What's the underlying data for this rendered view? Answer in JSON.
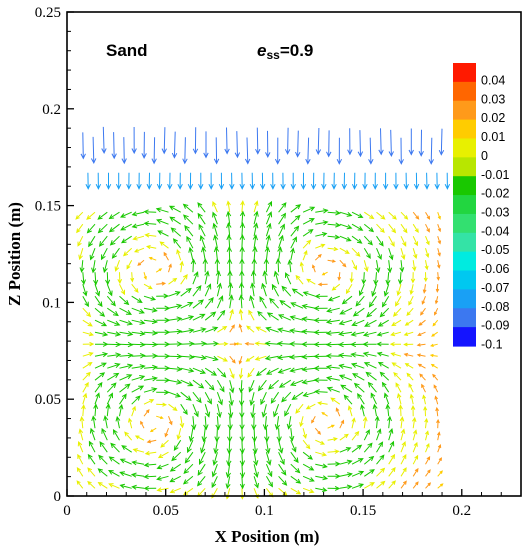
{
  "chart_data": {
    "type": "vector-field",
    "xlabel": "X Position (m)",
    "ylabel": "Z Position (m)",
    "xlim": [
      0,
      0.23
    ],
    "ylim": [
      0,
      0.25
    ],
    "x_ticks": [
      "0",
      "0.05",
      "0.1",
      "0.15",
      "0.2"
    ],
    "x_tick_values": [
      0,
      0.05,
      0.1,
      0.15,
      0.2
    ],
    "y_ticks": [
      "0",
      "0.05",
      "0.1",
      "0.15",
      "0.2",
      "0.25"
    ],
    "y_tick_values": [
      0,
      0.05,
      0.1,
      0.15,
      0.2,
      0.25
    ],
    "grid": false,
    "annotations": {
      "material": "Sand",
      "ratio_prefix": "e",
      "ratio_subscript": "ss",
      "ratio_value": "=0.9"
    },
    "colorbar": {
      "placement": "top-right",
      "levels": [
        "0.04",
        "0.03",
        "0.02",
        "0.01",
        "0",
        "-0.01",
        "-0.02",
        "-0.03",
        "-0.04",
        "-0.05",
        "-0.06",
        "-0.07",
        "-0.08",
        "-0.09",
        "-0.1"
      ],
      "colors": [
        "#ff1a00",
        "#ff6600",
        "#ff9a1a",
        "#ffcc00",
        "#e8f000",
        "#b8e600",
        "#19c800",
        "#22d640",
        "#33e070",
        "#34e3a6",
        "#00ebe0",
        "#00c8f0",
        "#19a0f5",
        "#3c78f0",
        "#1414ff"
      ]
    },
    "field_description_regions": {
      "domain_x": [
        0.005,
        0.195
      ],
      "domain_z": [
        0.0,
        0.19
      ],
      "downflow_band_z": [
        0.155,
        0.19
      ],
      "downflow_value": -0.09,
      "vortex_centers": [
        [
          0.045,
          0.115
        ],
        [
          0.13,
          0.115
        ],
        [
          0.045,
          0.04
        ],
        [
          0.13,
          0.04
        ]
      ]
    }
  }
}
